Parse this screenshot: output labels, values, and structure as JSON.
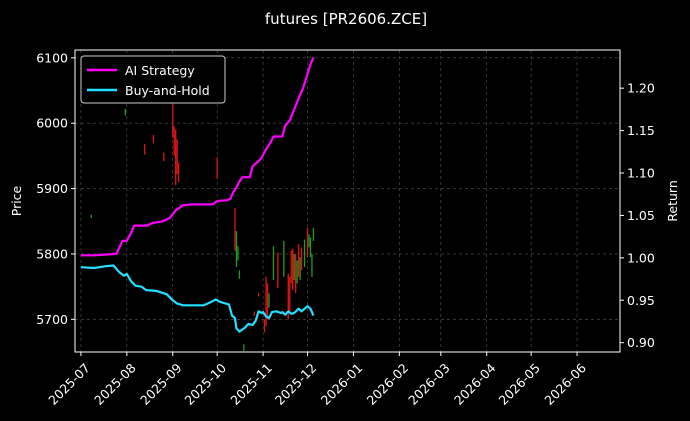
{
  "chart_data": {
    "type": "line",
    "title": "futures [PR2606.ZCE]",
    "xlabel": "",
    "ylabel": "Price",
    "y2label": "Return",
    "x_range": [
      "2025-06-27",
      "2026-06-30"
    ],
    "ylim": [
      5650,
      6112
    ],
    "y2lim": [
      0.889,
      1.245
    ],
    "grid": true,
    "legend_position": "top-left",
    "x_ticks": [
      "2025-07",
      "2025-08",
      "2025-09",
      "2025-10",
      "2025-11",
      "2025-12",
      "2026-01",
      "2026-02",
      "2026-03",
      "2026-04",
      "2026-05",
      "2026-06"
    ],
    "x_tick_dates": [
      "2025-07-01",
      "2025-08-01",
      "2025-09-01",
      "2025-10-01",
      "2025-11-01",
      "2025-12-01",
      "2026-01-01",
      "2026-02-01",
      "2026-03-01",
      "2026-04-01",
      "2026-05-01",
      "2026-06-01"
    ],
    "y_ticks": [
      5700,
      5800,
      5900,
      6000,
      6100
    ],
    "y2_ticks": [
      0.9,
      0.95,
      1.0,
      1.05,
      1.1,
      1.15,
      1.2
    ],
    "y2_tick_labels": [
      "0.90",
      "0.95",
      "1.00",
      "1.05",
      "1.10",
      "1.15",
      "1.20"
    ],
    "series": [
      {
        "name": "AI Strategy",
        "axis": "right",
        "color": "#ff00ff",
        "points": [
          [
            "2025-07-01",
            1.003
          ],
          [
            "2025-07-10",
            1.003
          ],
          [
            "2025-07-20",
            1.004
          ],
          [
            "2025-07-25",
            1.005
          ],
          [
            "2025-07-29",
            1.02
          ],
          [
            "2025-08-01",
            1.02
          ],
          [
            "2025-08-04",
            1.03
          ],
          [
            "2025-08-06",
            1.038
          ],
          [
            "2025-08-15",
            1.038
          ],
          [
            "2025-08-18",
            1.041
          ],
          [
            "2025-08-25",
            1.043
          ],
          [
            "2025-08-30",
            1.047
          ],
          [
            "2025-09-03",
            1.056
          ],
          [
            "2025-09-08",
            1.062
          ],
          [
            "2025-09-14",
            1.063
          ],
          [
            "2025-09-28",
            1.063
          ],
          [
            "2025-10-01",
            1.067
          ],
          [
            "2025-10-08",
            1.068
          ],
          [
            "2025-10-10",
            1.07
          ],
          [
            "2025-10-12",
            1.078
          ],
          [
            "2025-10-14",
            1.083
          ],
          [
            "2025-10-16",
            1.09
          ],
          [
            "2025-10-18",
            1.095
          ],
          [
            "2025-10-23",
            1.095
          ],
          [
            "2025-10-25",
            1.108
          ],
          [
            "2025-10-29",
            1.114
          ],
          [
            "2025-10-31",
            1.118
          ],
          [
            "2025-11-03",
            1.128
          ],
          [
            "2025-11-06",
            1.136
          ],
          [
            "2025-11-08",
            1.143
          ],
          [
            "2025-11-14",
            1.143
          ],
          [
            "2025-11-16",
            1.156
          ],
          [
            "2025-11-19",
            1.162
          ],
          [
            "2025-11-22",
            1.175
          ],
          [
            "2025-11-25",
            1.188
          ],
          [
            "2025-11-28",
            1.2
          ],
          [
            "2025-12-01",
            1.217
          ],
          [
            "2025-12-03",
            1.228
          ],
          [
            "2025-12-05",
            1.236
          ]
        ]
      },
      {
        "name": "Buy-and-Hold",
        "axis": "right",
        "color": "#22e0ff",
        "points": [
          [
            "2025-07-01",
            0.989
          ],
          [
            "2025-07-10",
            0.988
          ],
          [
            "2025-07-17",
            0.99
          ],
          [
            "2025-07-23",
            0.991
          ],
          [
            "2025-07-27",
            0.983
          ],
          [
            "2025-07-30",
            0.979
          ],
          [
            "2025-08-01",
            0.981
          ],
          [
            "2025-08-04",
            0.972
          ],
          [
            "2025-08-07",
            0.967
          ],
          [
            "2025-08-11",
            0.966
          ],
          [
            "2025-08-14",
            0.962
          ],
          [
            "2025-08-21",
            0.961
          ],
          [
            "2025-08-28",
            0.957
          ],
          [
            "2025-09-01",
            0.95
          ],
          [
            "2025-09-04",
            0.946
          ],
          [
            "2025-09-08",
            0.944
          ],
          [
            "2025-09-22",
            0.944
          ],
          [
            "2025-09-27",
            0.948
          ],
          [
            "2025-09-30",
            0.951
          ],
          [
            "2025-10-03",
            0.948
          ],
          [
            "2025-10-09",
            0.945
          ],
          [
            "2025-10-11",
            0.932
          ],
          [
            "2025-10-13",
            0.929
          ],
          [
            "2025-10-14",
            0.917
          ],
          [
            "2025-10-16",
            0.913
          ],
          [
            "2025-10-20",
            0.918
          ],
          [
            "2025-10-22",
            0.922
          ],
          [
            "2025-10-25",
            0.921
          ],
          [
            "2025-10-27",
            0.926
          ],
          [
            "2025-10-29",
            0.937
          ],
          [
            "2025-10-31",
            0.935
          ],
          [
            "2025-11-01",
            0.936
          ],
          [
            "2025-11-03",
            0.931
          ],
          [
            "2025-11-05",
            0.929
          ],
          [
            "2025-11-07",
            0.936
          ],
          [
            "2025-11-10",
            0.937
          ],
          [
            "2025-11-13",
            0.935
          ],
          [
            "2025-11-14",
            0.936
          ],
          [
            "2025-11-16",
            0.933
          ],
          [
            "2025-11-18",
            0.937
          ],
          [
            "2025-11-20",
            0.934
          ],
          [
            "2025-11-22",
            0.935
          ],
          [
            "2025-11-25",
            0.94
          ],
          [
            "2025-11-27",
            0.937
          ],
          [
            "2025-11-29",
            0.94
          ],
          [
            "2025-12-01",
            0.943
          ],
          [
            "2025-12-03",
            0.94
          ],
          [
            "2025-12-05",
            0.932
          ]
        ]
      }
    ],
    "candles": [
      {
        "date": "2025-07-08",
        "low": 5855,
        "high": 5860,
        "dir": "up"
      },
      {
        "date": "2025-07-31",
        "low": 6012,
        "high": 6022,
        "dir": "up"
      },
      {
        "date": "2025-08-13",
        "low": 5952,
        "high": 5968,
        "dir": "down"
      },
      {
        "date": "2025-08-19",
        "low": 5970,
        "high": 5982,
        "dir": "down"
      },
      {
        "date": "2025-08-26",
        "low": 5942,
        "high": 5955,
        "dir": "down"
      },
      {
        "date": "2025-09-01",
        "low": 5978,
        "high": 6030,
        "dir": "down"
      },
      {
        "date": "2025-09-02",
        "low": 5950,
        "high": 5995,
        "dir": "down"
      },
      {
        "date": "2025-09-03",
        "low": 5905,
        "high": 5990,
        "dir": "down"
      },
      {
        "date": "2025-09-04",
        "low": 5922,
        "high": 5975,
        "dir": "down"
      },
      {
        "date": "2025-09-05",
        "low": 5910,
        "high": 5940,
        "dir": "down"
      },
      {
        "date": "2025-10-01",
        "low": 5915,
        "high": 5948,
        "dir": "down"
      },
      {
        "date": "2025-10-13",
        "low": 5805,
        "high": 5870,
        "dir": "down"
      },
      {
        "date": "2025-10-14",
        "low": 5780,
        "high": 5835,
        "dir": "up"
      },
      {
        "date": "2025-10-15",
        "low": 5790,
        "high": 5812,
        "dir": "up"
      },
      {
        "date": "2025-10-16",
        "low": 5762,
        "high": 5775,
        "dir": "up"
      },
      {
        "date": "2025-10-19",
        "low": 5652,
        "high": 5662,
        "dir": "up"
      },
      {
        "date": "2025-10-26",
        "low": 5705,
        "high": 5712,
        "dir": "down"
      },
      {
        "date": "2025-10-29",
        "low": 5735,
        "high": 5740,
        "dir": "down"
      },
      {
        "date": "2025-11-02",
        "low": 5680,
        "high": 5700,
        "dir": "down"
      },
      {
        "date": "2025-11-03",
        "low": 5690,
        "high": 5765,
        "dir": "down"
      },
      {
        "date": "2025-11-04",
        "low": 5700,
        "high": 5755,
        "dir": "down"
      },
      {
        "date": "2025-11-05",
        "low": 5718,
        "high": 5740,
        "dir": "up"
      },
      {
        "date": "2025-11-08",
        "low": 5760,
        "high": 5812,
        "dir": "up"
      },
      {
        "date": "2025-11-11",
        "low": 5748,
        "high": 5802,
        "dir": "down"
      },
      {
        "date": "2025-11-15",
        "low": 5765,
        "high": 5820,
        "dir": "up"
      },
      {
        "date": "2025-11-18",
        "low": 5700,
        "high": 5770,
        "dir": "down"
      },
      {
        "date": "2025-11-19",
        "low": 5710,
        "high": 5765,
        "dir": "down"
      },
      {
        "date": "2025-11-20",
        "low": 5755,
        "high": 5805,
        "dir": "down"
      },
      {
        "date": "2025-11-21",
        "low": 5745,
        "high": 5808,
        "dir": "down"
      },
      {
        "date": "2025-11-22",
        "low": 5760,
        "high": 5800,
        "dir": "up"
      },
      {
        "date": "2025-11-23",
        "low": 5740,
        "high": 5800,
        "dir": "down"
      },
      {
        "date": "2025-11-24",
        "low": 5755,
        "high": 5790,
        "dir": "up"
      },
      {
        "date": "2025-11-25",
        "low": 5765,
        "high": 5815,
        "dir": "down"
      },
      {
        "date": "2025-11-26",
        "low": 5760,
        "high": 5795,
        "dir": "up"
      },
      {
        "date": "2025-11-27",
        "low": 5775,
        "high": 5810,
        "dir": "down"
      },
      {
        "date": "2025-11-29",
        "low": 5780,
        "high": 5822,
        "dir": "up"
      },
      {
        "date": "2025-12-01",
        "low": 5795,
        "high": 5840,
        "dir": "down"
      },
      {
        "date": "2025-12-02",
        "low": 5810,
        "high": 5830,
        "dir": "up"
      },
      {
        "date": "2025-12-03",
        "low": 5795,
        "high": 5825,
        "dir": "up"
      },
      {
        "date": "2025-12-04",
        "low": 5765,
        "high": 5800,
        "dir": "up"
      },
      {
        "date": "2025-12-05",
        "low": 5820,
        "high": 5840,
        "dir": "up"
      }
    ]
  }
}
